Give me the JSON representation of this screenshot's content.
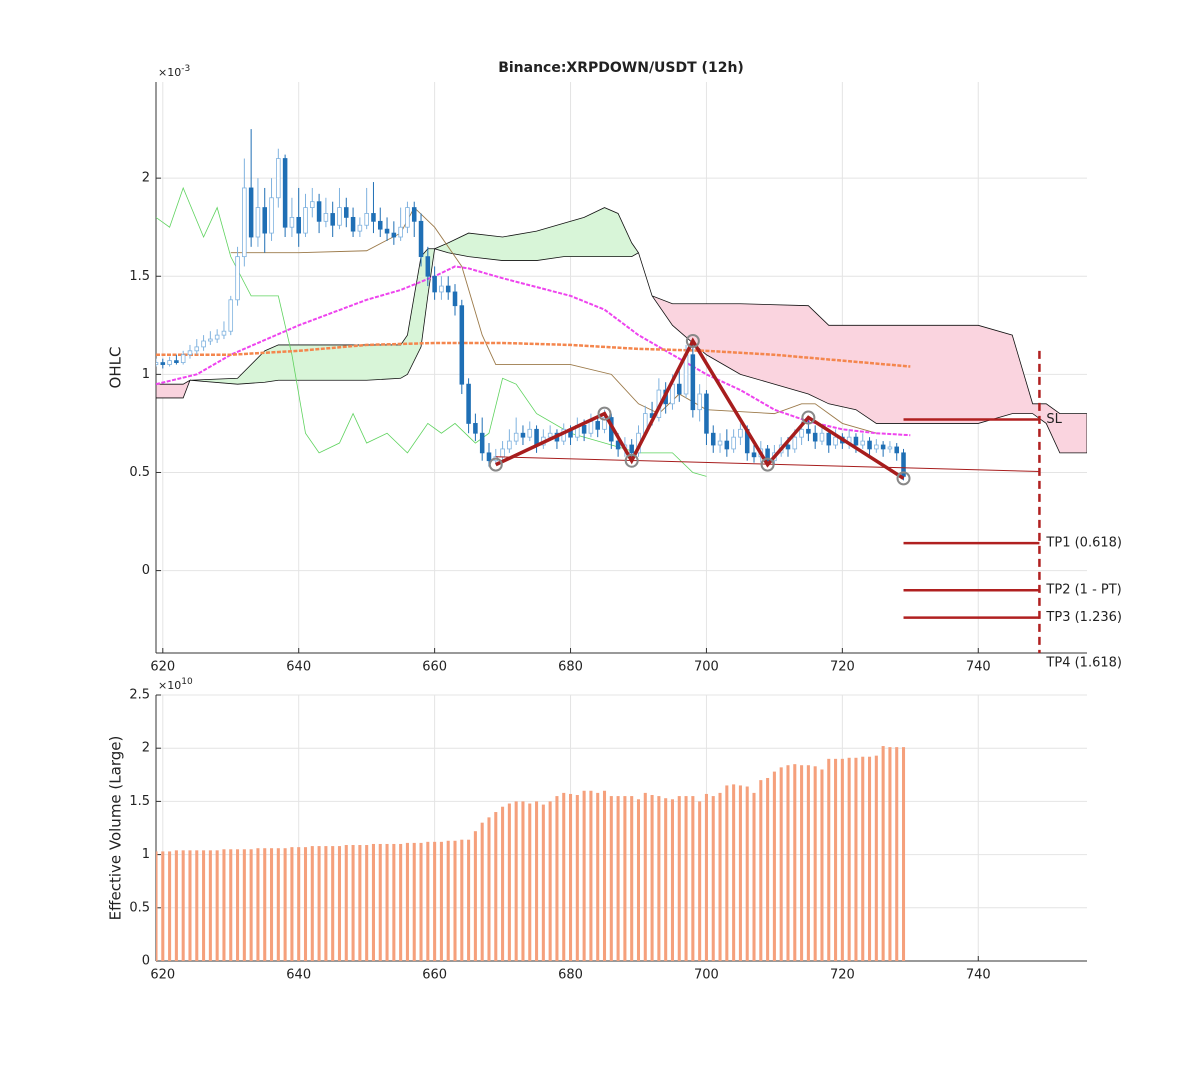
{
  "chart_data": [
    {
      "type": "candlestick",
      "title": "Binance:XRPDOWN/USDT (12h)",
      "ylabel": "OHLC",
      "y_multiplier": {
        "base": "×10",
        "exp": "-3"
      },
      "xlim": [
        619,
        756
      ],
      "ylim": [
        -0.42,
        2.49
      ],
      "xticks": [
        620,
        640,
        660,
        680,
        700,
        720,
        740
      ],
      "yticks": [
        0,
        0.5,
        1,
        1.5,
        2
      ],
      "grid": true,
      "up_color": "#7fb2df",
      "down_color": "#1f6fb5",
      "x": [
        619,
        620,
        621,
        622,
        623,
        624,
        625,
        626,
        627,
        628,
        629,
        630,
        631,
        632,
        633,
        634,
        635,
        636,
        637,
        638,
        639,
        640,
        641,
        642,
        643,
        644,
        645,
        646,
        647,
        648,
        649,
        650,
        651,
        652,
        653,
        654,
        655,
        656,
        657,
        658,
        659,
        660,
        661,
        662,
        663,
        664,
        665,
        666,
        667,
        668,
        669,
        670,
        671,
        672,
        673,
        674,
        675,
        676,
        677,
        678,
        679,
        680,
        681,
        682,
        683,
        684,
        685,
        686,
        687,
        688,
        689,
        690,
        691,
        692,
        693,
        694,
        695,
        696,
        697,
        698,
        699,
        700,
        701,
        702,
        703,
        704,
        705,
        706,
        707,
        708,
        709,
        710,
        711,
        712,
        713,
        714,
        715,
        716,
        717,
        718,
        719,
        720,
        721,
        722,
        723,
        724,
        725,
        726,
        727,
        728,
        729
      ],
      "open": [
        1.05,
        1.06,
        1.05,
        1.07,
        1.06,
        1.1,
        1.12,
        1.14,
        1.17,
        1.18,
        1.2,
        1.22,
        1.38,
        1.6,
        1.95,
        1.7,
        1.85,
        1.72,
        1.9,
        2.1,
        1.75,
        1.8,
        1.72,
        1.85,
        1.88,
        1.78,
        1.82,
        1.76,
        1.85,
        1.8,
        1.73,
        1.76,
        1.82,
        1.78,
        1.74,
        1.72,
        1.7,
        1.75,
        1.85,
        1.78,
        1.6,
        1.5,
        1.42,
        1.45,
        1.42,
        1.35,
        0.95,
        0.75,
        0.7,
        0.6,
        0.56,
        0.58,
        0.62,
        0.66,
        0.7,
        0.68,
        0.72,
        0.64,
        0.68,
        0.7,
        0.66,
        0.72,
        0.68,
        0.74,
        0.7,
        0.76,
        0.72,
        0.78,
        0.66,
        0.62,
        0.64,
        0.6,
        0.7,
        0.8,
        0.78,
        0.92,
        0.85,
        0.95,
        0.9,
        1.1,
        0.82,
        0.9,
        0.7,
        0.64,
        0.66,
        0.62,
        0.68,
        0.72,
        0.6,
        0.58,
        0.62,
        0.56,
        0.6,
        0.64,
        0.62,
        0.68,
        0.72,
        0.7,
        0.66,
        0.7,
        0.64,
        0.68,
        0.65,
        0.68,
        0.64,
        0.66,
        0.62,
        0.64,
        0.62,
        0.63,
        0.6
      ],
      "close": [
        1.06,
        1.05,
        1.07,
        1.06,
        1.1,
        1.12,
        1.14,
        1.17,
        1.18,
        1.2,
        1.22,
        1.38,
        1.6,
        1.95,
        1.7,
        1.85,
        1.72,
        1.9,
        2.1,
        1.75,
        1.8,
        1.72,
        1.85,
        1.88,
        1.78,
        1.82,
        1.76,
        1.85,
        1.8,
        1.73,
        1.76,
        1.82,
        1.78,
        1.74,
        1.72,
        1.7,
        1.75,
        1.85,
        1.78,
        1.6,
        1.5,
        1.42,
        1.45,
        1.42,
        1.35,
        0.95,
        0.75,
        0.7,
        0.6,
        0.56,
        0.58,
        0.62,
        0.66,
        0.7,
        0.68,
        0.72,
        0.64,
        0.68,
        0.7,
        0.66,
        0.72,
        0.68,
        0.74,
        0.7,
        0.76,
        0.72,
        0.78,
        0.66,
        0.62,
        0.64,
        0.6,
        0.7,
        0.8,
        0.78,
        0.92,
        0.85,
        0.95,
        0.9,
        1.1,
        0.82,
        0.9,
        0.7,
        0.64,
        0.66,
        0.62,
        0.68,
        0.72,
        0.6,
        0.58,
        0.62,
        0.56,
        0.6,
        0.64,
        0.62,
        0.68,
        0.72,
        0.7,
        0.66,
        0.7,
        0.64,
        0.68,
        0.65,
        0.68,
        0.64,
        0.66,
        0.62,
        0.64,
        0.62,
        0.63,
        0.6,
        0.48
      ],
      "high": [
        1.08,
        1.08,
        1.09,
        1.1,
        1.12,
        1.15,
        1.18,
        1.2,
        1.22,
        1.23,
        1.27,
        1.4,
        1.65,
        2.1,
        2.25,
        2.0,
        1.95,
        2.0,
        2.15,
        2.12,
        1.9,
        1.95,
        1.92,
        1.95,
        1.92,
        1.9,
        1.88,
        1.95,
        1.9,
        1.85,
        1.8,
        1.95,
        1.98,
        1.85,
        1.8,
        1.78,
        1.85,
        1.88,
        1.88,
        1.82,
        1.65,
        1.55,
        1.5,
        1.5,
        1.46,
        1.38,
        0.98,
        0.8,
        0.78,
        0.65,
        0.62,
        0.66,
        0.72,
        0.78,
        0.74,
        0.76,
        0.74,
        0.72,
        0.74,
        0.72,
        0.75,
        0.74,
        0.78,
        0.77,
        0.8,
        0.79,
        0.82,
        0.8,
        0.7,
        0.68,
        0.67,
        0.74,
        0.84,
        0.86,
        0.98,
        0.96,
        1.0,
        1.02,
        1.15,
        1.18,
        0.95,
        0.92,
        0.74,
        0.7,
        0.72,
        0.72,
        0.75,
        0.74,
        0.64,
        0.66,
        0.64,
        0.64,
        0.68,
        0.68,
        0.72,
        0.76,
        0.78,
        0.74,
        0.74,
        0.72,
        0.72,
        0.7,
        0.72,
        0.7,
        0.7,
        0.68,
        0.67,
        0.66,
        0.66,
        0.65,
        0.62
      ],
      "low": [
        1.04,
        1.03,
        1.04,
        1.05,
        1.05,
        1.08,
        1.1,
        1.12,
        1.15,
        1.16,
        1.18,
        1.2,
        1.35,
        1.55,
        1.65,
        1.65,
        1.62,
        1.68,
        1.85,
        1.7,
        1.7,
        1.65,
        1.7,
        1.8,
        1.72,
        1.75,
        1.7,
        1.74,
        1.75,
        1.7,
        1.7,
        1.74,
        1.72,
        1.7,
        1.68,
        1.66,
        1.68,
        1.72,
        1.7,
        1.55,
        1.45,
        1.38,
        1.38,
        1.38,
        1.3,
        0.9,
        0.7,
        0.66,
        0.56,
        0.53,
        0.54,
        0.56,
        0.6,
        0.64,
        0.64,
        0.66,
        0.6,
        0.62,
        0.66,
        0.62,
        0.64,
        0.64,
        0.66,
        0.66,
        0.68,
        0.68,
        0.7,
        0.62,
        0.58,
        0.58,
        0.56,
        0.58,
        0.68,
        0.74,
        0.76,
        0.8,
        0.82,
        0.86,
        0.88,
        0.78,
        0.76,
        0.64,
        0.6,
        0.6,
        0.58,
        0.6,
        0.64,
        0.56,
        0.55,
        0.55,
        0.53,
        0.54,
        0.58,
        0.58,
        0.6,
        0.64,
        0.66,
        0.62,
        0.64,
        0.6,
        0.62,
        0.62,
        0.62,
        0.6,
        0.62,
        0.58,
        0.6,
        0.58,
        0.6,
        0.56,
        0.46
      ],
      "clouds": [
        {
          "color": "#f9d3de",
          "x": [
            619,
            623,
            624
          ],
          "upper": [
            0.95,
            0.95,
            0.97
          ],
          "lower": [
            0.88,
            0.88,
            0.97
          ]
        },
        {
          "color": "#d8f5d8",
          "x": [
            624,
            631,
            635,
            637,
            650,
            655,
            656,
            658,
            659,
            660
          ],
          "upper": [
            0.97,
            0.98,
            1.12,
            1.15,
            1.15,
            1.15,
            1.2,
            1.6,
            1.64,
            1.64
          ],
          "lower": [
            0.97,
            0.95,
            0.96,
            0.97,
            0.97,
            0.98,
            1.0,
            1.14,
            1.4,
            1.64
          ]
        },
        {
          "color": "#d8f5d8",
          "x": [
            660,
            662,
            665,
            670,
            675,
            679,
            682,
            685,
            687,
            689,
            690
          ],
          "upper": [
            1.64,
            1.67,
            1.72,
            1.7,
            1.73,
            1.77,
            1.8,
            1.85,
            1.82,
            1.67,
            1.62
          ],
          "lower": [
            1.64,
            1.62,
            1.6,
            1.58,
            1.58,
            1.6,
            1.6,
            1.6,
            1.6,
            1.6,
            1.62
          ]
        },
        {
          "color": "#fad4df",
          "x": [
            690,
            692,
            695,
            700,
            705,
            715,
            718,
            722,
            725,
            740,
            745,
            748,
            750,
            752,
            756
          ],
          "upper": [
            1.62,
            1.4,
            1.36,
            1.36,
            1.36,
            1.35,
            1.25,
            1.25,
            1.25,
            1.25,
            1.2,
            0.85,
            0.85,
            0.8,
            0.8
          ],
          "lower": [
            1.62,
            1.4,
            1.25,
            1.1,
            1.0,
            0.9,
            0.85,
            0.82,
            0.75,
            0.75,
            0.8,
            0.8,
            0.75,
            0.6,
            0.6
          ]
        }
      ],
      "lines": [
        {
          "color": "#5fd35f",
          "width": 0.8,
          "x": [
            619,
            621,
            623,
            626,
            628,
            630,
            633,
            637,
            639,
            641,
            643,
            646,
            648,
            650,
            653,
            656,
            659,
            661,
            663,
            666,
            668,
            670,
            672,
            675,
            680,
            685,
            690,
            695,
            698,
            700
          ],
          "values": [
            1.8,
            1.75,
            1.95,
            1.7,
            1.85,
            1.6,
            1.4,
            1.4,
            1.1,
            0.7,
            0.6,
            0.65,
            0.8,
            0.65,
            0.7,
            0.6,
            0.75,
            0.7,
            0.75,
            0.65,
            0.7,
            0.98,
            0.95,
            0.8,
            0.7,
            0.65,
            0.6,
            0.6,
            0.5,
            0.48
          ]
        },
        {
          "color": "#9c7a4a",
          "width": 0.9,
          "x": [
            630,
            640,
            650,
            655,
            657,
            660,
            664,
            667,
            669,
            680,
            686,
            690,
            693,
            696,
            700,
            710,
            714,
            716,
            720,
            725
          ],
          "values": [
            1.62,
            1.62,
            1.63,
            1.72,
            1.85,
            1.75,
            1.55,
            1.2,
            1.05,
            1.05,
            1.0,
            0.85,
            0.8,
            0.9,
            0.82,
            0.8,
            0.85,
            0.85,
            0.75,
            0.7
          ]
        },
        {
          "color": "#ee44ee",
          "width": 2,
          "x": [
            619,
            625,
            630,
            640,
            650,
            655,
            660,
            663,
            665,
            670,
            680,
            685,
            690,
            695,
            700,
            705,
            710,
            715,
            720,
            725,
            730
          ],
          "values": [
            0.95,
            1.0,
            1.1,
            1.25,
            1.38,
            1.43,
            1.5,
            1.55,
            1.54,
            1.49,
            1.4,
            1.33,
            1.2,
            1.1,
            1.0,
            0.92,
            0.82,
            0.76,
            0.72,
            0.7,
            0.69
          ]
        },
        {
          "color": "#f4864d",
          "width": 2.5,
          "x": [
            619,
            630,
            640,
            650,
            660,
            670,
            680,
            690,
            700,
            710,
            720,
            730
          ],
          "values": [
            1.1,
            1.1,
            1.12,
            1.15,
            1.16,
            1.16,
            1.15,
            1.13,
            1.12,
            1.1,
            1.07,
            1.04
          ]
        }
      ],
      "pattern": {
        "color": "#a71d1d",
        "marker_color": "#888888",
        "x": [
          669,
          685,
          689,
          698,
          709,
          715,
          729
        ],
        "values": [
          0.54,
          0.8,
          0.56,
          1.17,
          0.54,
          0.78,
          0.47
        ]
      },
      "trendline": {
        "color": "#a71d1d",
        "x": [
          669,
          749
        ],
        "values": [
          0.58,
          0.505
        ]
      },
      "levels": {
        "color": "#b02020",
        "x": [
          729,
          749
        ],
        "target_top": 1.12,
        "items": [
          {
            "label": "SL",
            "value": 0.77
          },
          {
            "label": "TP1 (0.618)",
            "value": 0.14
          },
          {
            "label": "TP2 (1 - PT)",
            "value": -0.1
          },
          {
            "label": "TP3 (1.236)",
            "value": -0.24
          },
          {
            "label": "TP4 (1.618)",
            "value": -0.47
          }
        ]
      }
    },
    {
      "type": "bar",
      "ylabel": "Effective Volume (Large)",
      "y_multiplier": {
        "base": "×10",
        "exp": "10"
      },
      "xlim": [
        619,
        756
      ],
      "ylim": [
        0,
        2.5
      ],
      "xticks": [
        620,
        640,
        660,
        680,
        700,
        720,
        740
      ],
      "yticks": [
        0,
        0.5,
        1,
        1.5,
        2,
        2.5
      ],
      "grid": true,
      "color": "#f5a07c",
      "x": [
        619,
        620,
        621,
        622,
        623,
        624,
        625,
        626,
        627,
        628,
        629,
        630,
        631,
        632,
        633,
        634,
        635,
        636,
        637,
        638,
        639,
        640,
        641,
        642,
        643,
        644,
        645,
        646,
        647,
        648,
        649,
        650,
        651,
        652,
        653,
        654,
        655,
        656,
        657,
        658,
        659,
        660,
        661,
        662,
        663,
        664,
        665,
        666,
        667,
        668,
        669,
        670,
        671,
        672,
        673,
        674,
        675,
        676,
        677,
        678,
        679,
        680,
        681,
        682,
        683,
        684,
        685,
        686,
        687,
        688,
        689,
        690,
        691,
        692,
        693,
        694,
        695,
        696,
        697,
        698,
        699,
        700,
        701,
        702,
        703,
        704,
        705,
        706,
        707,
        708,
        709,
        710,
        711,
        712,
        713,
        714,
        715,
        716,
        717,
        718,
        719,
        720,
        721,
        722,
        723,
        724,
        725,
        726,
        727,
        728,
        729
      ],
      "values": [
        1.03,
        1.03,
        1.03,
        1.04,
        1.04,
        1.04,
        1.04,
        1.04,
        1.04,
        1.04,
        1.05,
        1.05,
        1.05,
        1.05,
        1.05,
        1.06,
        1.06,
        1.06,
        1.06,
        1.06,
        1.07,
        1.07,
        1.07,
        1.08,
        1.08,
        1.08,
        1.08,
        1.08,
        1.09,
        1.09,
        1.09,
        1.09,
        1.1,
        1.1,
        1.1,
        1.1,
        1.1,
        1.11,
        1.11,
        1.11,
        1.12,
        1.12,
        1.12,
        1.13,
        1.13,
        1.14,
        1.14,
        1.22,
        1.3,
        1.35,
        1.4,
        1.45,
        1.48,
        1.5,
        1.5,
        1.48,
        1.5,
        1.47,
        1.5,
        1.55,
        1.58,
        1.57,
        1.56,
        1.6,
        1.6,
        1.58,
        1.6,
        1.55,
        1.55,
        1.55,
        1.55,
        1.52,
        1.58,
        1.56,
        1.55,
        1.53,
        1.52,
        1.55,
        1.55,
        1.55,
        1.5,
        1.57,
        1.55,
        1.58,
        1.65,
        1.66,
        1.65,
        1.64,
        1.58,
        1.7,
        1.72,
        1.78,
        1.82,
        1.84,
        1.85,
        1.84,
        1.84,
        1.83,
        1.8,
        1.9,
        1.9,
        1.9,
        1.91,
        1.91,
        1.92,
        1.92,
        1.93,
        2.02,
        2.01,
        2.01,
        2.01
      ]
    }
  ]
}
